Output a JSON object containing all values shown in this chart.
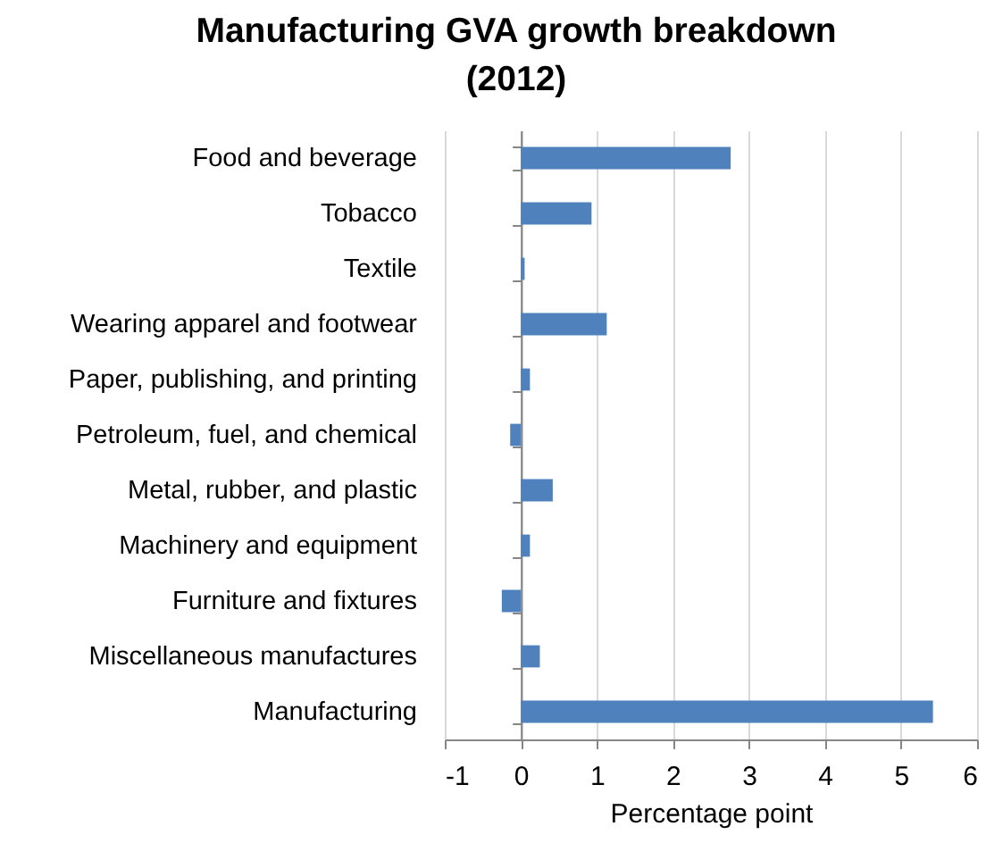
{
  "chart_data": {
    "type": "bar",
    "orientation": "horizontal",
    "title": "Manufacturing GVA growth  breakdown\n(2012)",
    "xlabel": "Percentage point",
    "categories": [
      "Food and beverage",
      "Tobacco",
      "Textile",
      "Wearing apparel and footwear",
      "Paper, publishing, and printing",
      "Petroleum, fuel, and chemical",
      "Metal, rubber, and plastic",
      "Machinery and equipment",
      "Furniture and fixtures",
      "Miscellaneous manufactures",
      "Manufacturing"
    ],
    "values": [
      2.76,
      0.93,
      0.05,
      1.13,
      0.12,
      -0.14,
      0.42,
      0.12,
      -0.25,
      0.25,
      5.42
    ],
    "color": "#4f81bd",
    "xlim": [
      -1,
      6
    ],
    "xticks": [
      -1,
      0,
      1,
      2,
      3,
      4,
      5,
      6
    ],
    "grid": "x"
  }
}
